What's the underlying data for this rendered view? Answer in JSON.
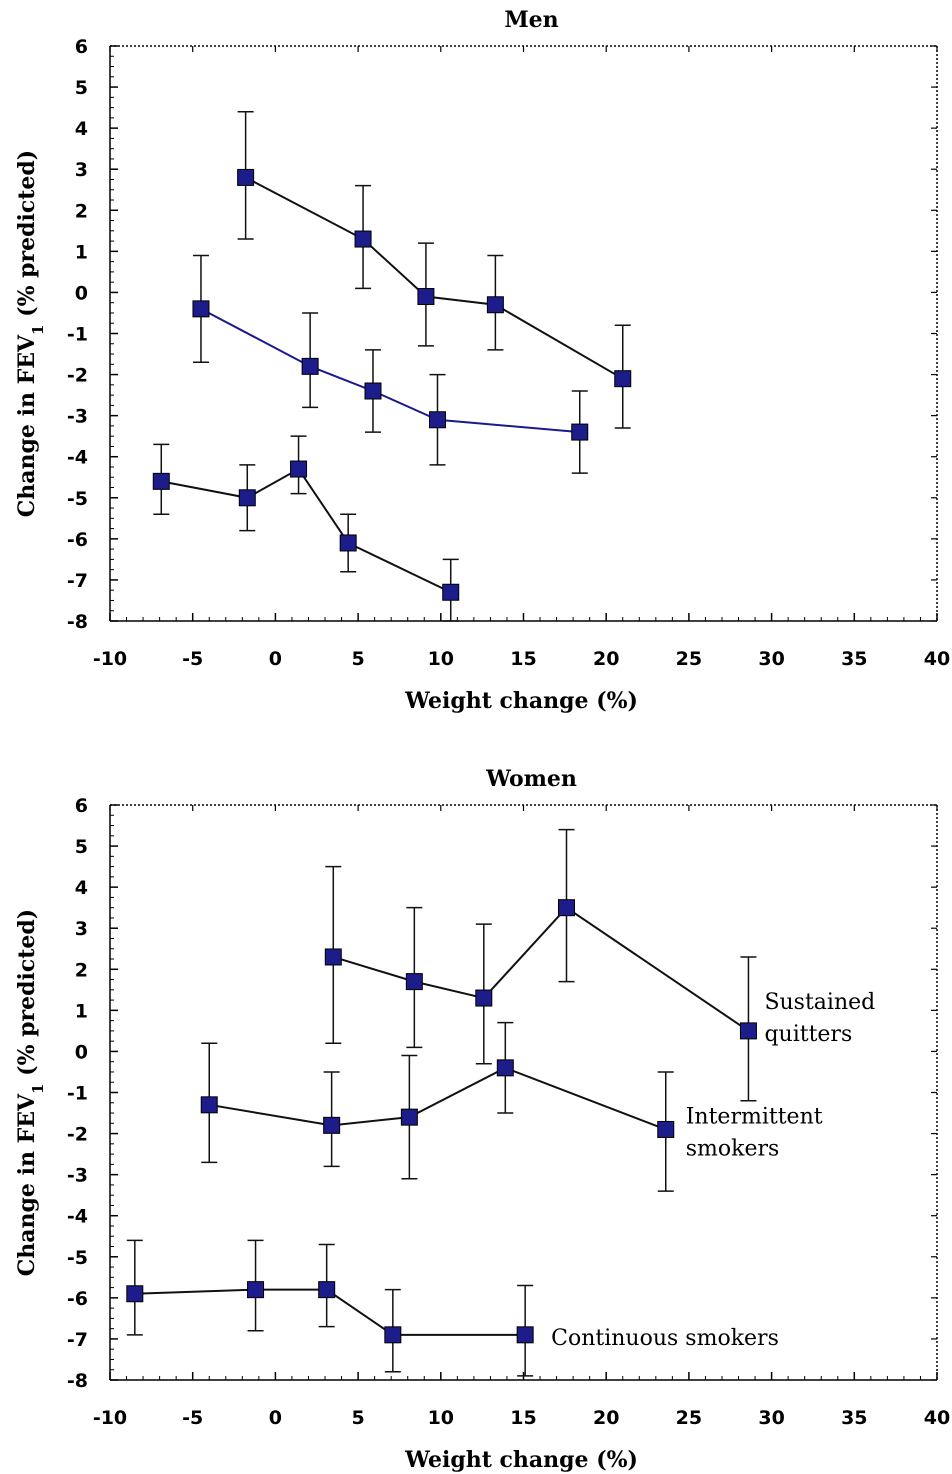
{
  "chart_data": [
    {
      "type": "line",
      "title": "Men",
      "xlabel": "Weight change (%)",
      "ylabel_main": "Change in FEV",
      "ylabel_sub": "1",
      "ylabel_tail": " (% predicted)",
      "xlim": [
        -10,
        40
      ],
      "ylim": [
        -8,
        6
      ],
      "x_ticks": [
        -10,
        -5,
        0,
        5,
        10,
        15,
        20,
        25,
        30,
        35,
        40
      ],
      "y_ticks": [
        6,
        5,
        4,
        3,
        2,
        1,
        0,
        -1,
        -2,
        -3,
        -4,
        -5,
        -6,
        -7,
        -8
      ],
      "series": [
        {
          "line_color": "#111111",
          "points": [
            {
              "x": -1.8,
              "y": 2.8,
              "lo": 1.3,
              "hi": 4.4
            },
            {
              "x": 5.3,
              "y": 1.3,
              "lo": 0.1,
              "hi": 2.6
            },
            {
              "x": 9.1,
              "y": -0.1,
              "lo": -1.3,
              "hi": 1.2
            },
            {
              "x": 13.3,
              "y": -0.3,
              "lo": -1.4,
              "hi": 0.9
            },
            {
              "x": 21.0,
              "y": -2.1,
              "lo": -3.3,
              "hi": -0.8
            }
          ]
        },
        {
          "line_color": "#1a1a8c",
          "points": [
            {
              "x": -4.5,
              "y": -0.4,
              "lo": -1.7,
              "hi": 0.9
            },
            {
              "x": 2.1,
              "y": -1.8,
              "lo": -2.8,
              "hi": -0.5
            },
            {
              "x": 5.9,
              "y": -2.4,
              "lo": -3.4,
              "hi": -1.4
            },
            {
              "x": 9.8,
              "y": -3.1,
              "lo": -4.2,
              "hi": -2.0
            },
            {
              "x": 18.4,
              "y": -3.4,
              "lo": -4.4,
              "hi": -2.4
            }
          ]
        },
        {
          "line_color": "#111111",
          "points": [
            {
              "x": -6.9,
              "y": -4.6,
              "lo": -5.4,
              "hi": -3.7
            },
            {
              "x": -1.7,
              "y": -5.0,
              "lo": -5.8,
              "hi": -4.2
            },
            {
              "x": 1.4,
              "y": -4.3,
              "lo": -4.9,
              "hi": -3.5
            },
            {
              "x": 4.4,
              "y": -6.1,
              "lo": -6.8,
              "hi": -5.4
            },
            {
              "x": 10.6,
              "y": -7.3,
              "lo": -8.0,
              "hi": -6.5
            }
          ]
        }
      ]
    },
    {
      "type": "line",
      "title": "Women",
      "xlabel": "Weight change (%)",
      "ylabel_main": "Change in FEV",
      "ylabel_sub": "1",
      "ylabel_tail": " (% predicted)",
      "xlim": [
        -10,
        40
      ],
      "ylim": [
        -8,
        6
      ],
      "x_ticks": [
        -10,
        -5,
        0,
        5,
        10,
        15,
        20,
        25,
        30,
        35,
        40
      ],
      "y_ticks": [
        6,
        5,
        4,
        3,
        2,
        1,
        0,
        -1,
        -2,
        -3,
        -4,
        -5,
        -6,
        -7,
        -8
      ],
      "series": [
        {
          "label_lines": [
            "Sustained",
            "quitters"
          ],
          "line_color": "#111111",
          "points": [
            {
              "x": 3.5,
              "y": 2.3,
              "lo": 0.2,
              "hi": 4.5
            },
            {
              "x": 8.4,
              "y": 1.7,
              "lo": 0.1,
              "hi": 3.5
            },
            {
              "x": 12.6,
              "y": 1.3,
              "lo": -0.3,
              "hi": 3.1
            },
            {
              "x": 17.6,
              "y": 3.5,
              "lo": 1.7,
              "hi": 5.4
            },
            {
              "x": 28.6,
              "y": 0.5,
              "lo": -1.2,
              "hi": 2.3
            }
          ]
        },
        {
          "label_lines": [
            "Intermittent",
            "smokers"
          ],
          "line_color": "#111111",
          "points": [
            {
              "x": -4.0,
              "y": -1.3,
              "lo": -2.7,
              "hi": 0.2
            },
            {
              "x": 3.4,
              "y": -1.8,
              "lo": -2.8,
              "hi": -0.5
            },
            {
              "x": 8.1,
              "y": -1.6,
              "lo": -3.1,
              "hi": -0.1
            },
            {
              "x": 13.9,
              "y": -0.4,
              "lo": -1.5,
              "hi": 0.7
            },
            {
              "x": 23.6,
              "y": -1.9,
              "lo": -3.4,
              "hi": -0.5
            }
          ]
        },
        {
          "label_lines": [
            "Continuous smokers"
          ],
          "line_color": "#111111",
          "points": [
            {
              "x": -8.5,
              "y": -5.9,
              "lo": -6.9,
              "hi": -4.6
            },
            {
              "x": -1.2,
              "y": -5.8,
              "lo": -6.8,
              "hi": -4.6
            },
            {
              "x": 3.1,
              "y": -5.8,
              "lo": -6.7,
              "hi": -4.7
            },
            {
              "x": 7.1,
              "y": -6.9,
              "lo": -7.8,
              "hi": -5.8
            },
            {
              "x": 15.1,
              "y": -6.9,
              "lo": -7.9,
              "hi": -5.7
            }
          ]
        }
      ]
    }
  ],
  "marker_color": "#1c1c8a",
  "errorbar_color": "#111111"
}
